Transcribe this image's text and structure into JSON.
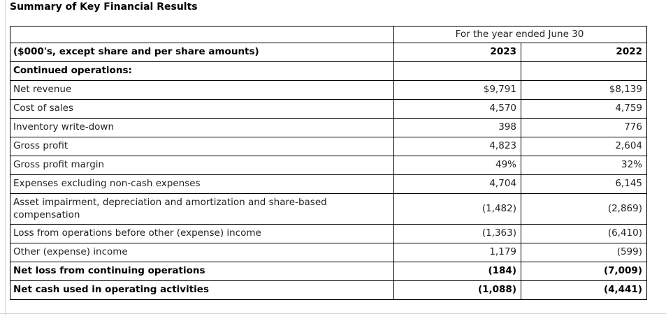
{
  "title": "Summary of Key Financial Results",
  "table": {
    "period_header": "For the year ended June 30",
    "unit_label": "($000's, except share and per share amounts)",
    "columns": [
      "2023",
      "2022"
    ],
    "section_header": "Continued operations:",
    "rows": [
      {
        "label": "Net revenue",
        "v2023": "$9,791",
        "v2022": "$8,139"
      },
      {
        "label": "Cost of sales",
        "v2023": "4,570",
        "v2022": "4,759"
      },
      {
        "label": "Inventory write-down",
        "v2023": "398",
        "v2022": "776"
      },
      {
        "label": "Gross profit",
        "v2023": "4,823",
        "v2022": "2,604"
      },
      {
        "label": "Gross profit margin",
        "v2023": "49%",
        "v2022": "32%"
      },
      {
        "label": "Expenses excluding non-cash expenses",
        "v2023": "4,704",
        "v2022": "6,145"
      },
      {
        "label": "Asset impairment, depreciation and amortization and share-based compensation",
        "v2023": "(1,482)",
        "v2022": "(2,869)"
      },
      {
        "label": "Loss from operations before other (expense) income",
        "v2023": "(1,363)",
        "v2022": "(6,410)"
      },
      {
        "label": "Other (expense) income",
        "v2023": "1,179",
        "v2022": "(599)"
      },
      {
        "label": "Net loss from continuing operations",
        "v2023": "(184)",
        "v2022": "(7,009)"
      },
      {
        "label": "Net cash used in operating activities",
        "v2023": "(1,088)",
        "v2022": "(4,441)"
      }
    ]
  },
  "colors": {
    "background": "#ffffff",
    "table_border": "#000000",
    "text": "#222222",
    "bold_text": "#000000",
    "faint_rule": "#d7d7d7"
  }
}
